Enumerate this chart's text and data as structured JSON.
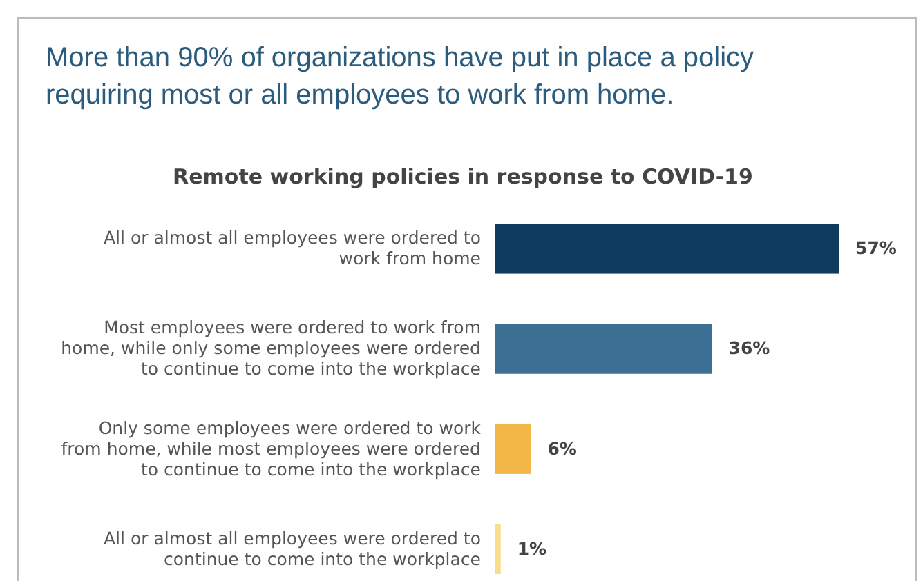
{
  "chart_data": {
    "type": "bar",
    "orientation": "horizontal",
    "title": "More than 90% of organizations have put in place a policy requiring most or all employees to work from home.",
    "subtitle": "Remote working policies in response to COVID-19",
    "categories": [
      "All or almost all employees were ordered to work from home",
      "Most employees were ordered to work from home, while only some employees were ordered to continue to come into the workplace",
      "Only some employees were ordered to work from home, while most employees were ordered to continue to come into the workplace",
      "All or almost all employees were ordered to continue to come into the workplace"
    ],
    "values": [
      57,
      36,
      6,
      1
    ],
    "colors": [
      "#0e3b5e",
      "#3b6f93",
      "#f2b747",
      "#f8dd8c"
    ],
    "value_labels": [
      "57%",
      "36%",
      "6%",
      "1%"
    ]
  }
}
